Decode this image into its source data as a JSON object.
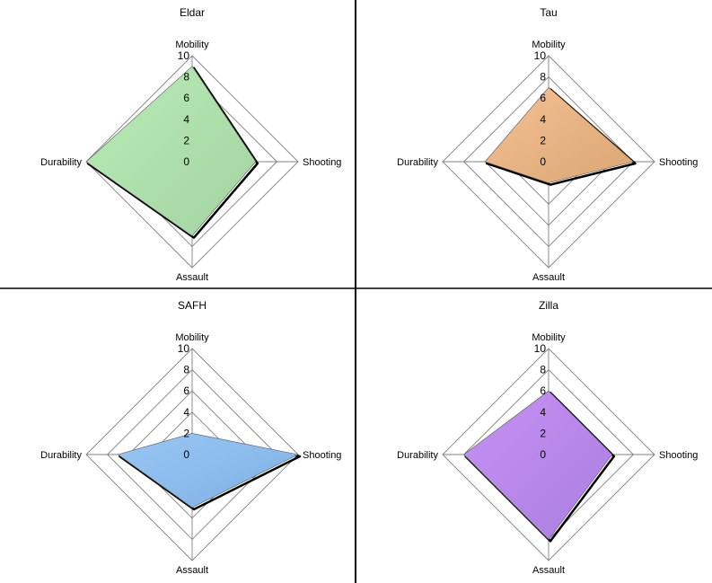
{
  "chart_data": [
    {
      "type": "radar",
      "title": "Eldar",
      "axes": [
        "Mobility",
        "Shooting",
        "Assault",
        "Durability"
      ],
      "values": [
        9,
        6,
        7,
        10
      ],
      "ticks": [
        "0",
        "2",
        "4",
        "6",
        "8",
        "10"
      ],
      "rlim": [
        0,
        10
      ],
      "grid": true,
      "fill_color": "#b8ecb6",
      "fill_color_dark": "#a3d3a1"
    },
    {
      "type": "radar",
      "title": "Tau",
      "axes": [
        "Mobility",
        "Shooting",
        "Assault",
        "Durability"
      ],
      "values": [
        7,
        8,
        2,
        6
      ],
      "ticks": [
        "0",
        "2",
        "4",
        "6",
        "8",
        "10"
      ],
      "rlim": [
        0,
        10
      ],
      "grid": true,
      "fill_color": "#f5c193",
      "fill_color_dark": "#dba675"
    },
    {
      "type": "radar",
      "title": "SAFH",
      "axes": [
        "Mobility",
        "Shooting",
        "Assault",
        "Durability"
      ],
      "values": [
        2,
        10,
        5,
        7
      ],
      "ticks": [
        "0",
        "2",
        "4",
        "6",
        "8",
        "10"
      ],
      "rlim": [
        0,
        10
      ],
      "grid": true,
      "fill_color": "#99c6f3",
      "fill_color_dark": "#7fb1e6"
    },
    {
      "type": "radar",
      "title": "Zilla",
      "axes": [
        "Mobility",
        "Shooting",
        "Assault",
        "Durability"
      ],
      "values": [
        6,
        6,
        8,
        8
      ],
      "ticks": [
        "0",
        "2",
        "4",
        "6",
        "8",
        "10"
      ],
      "rlim": [
        0,
        10
      ],
      "grid": true,
      "fill_color": "#c792f3",
      "fill_color_dark": "#a97ee0"
    }
  ],
  "colors": {
    "divider": "#000000",
    "grid": "#808080",
    "shadow": "#000000"
  }
}
